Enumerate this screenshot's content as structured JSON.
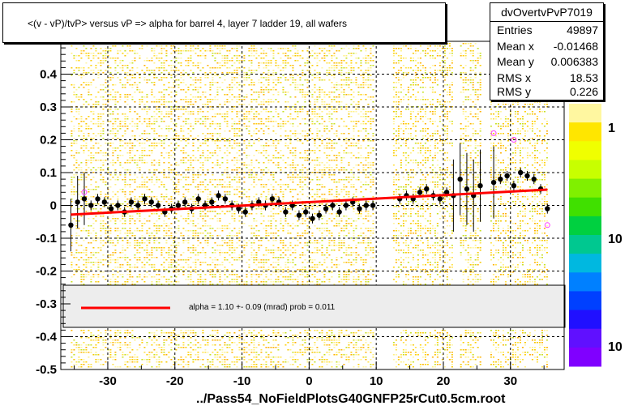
{
  "title": "<(v - vP)/tvP> versus   vP => alpha for barrel 4, layer 7 ladder 19, all wafers",
  "stats": {
    "name": "dvOvertvPvP7019",
    "rows": [
      {
        "label": "Entries",
        "value": "49897"
      },
      {
        "label": "Mean x",
        "value": "-0.01468"
      },
      {
        "label": "Mean y",
        "value": "0.006383"
      },
      {
        "label": "RMS x",
        "value": "18.53"
      },
      {
        "label": "RMS y",
        "value": "0.226"
      }
    ]
  },
  "legend": {
    "text": "alpha =    1.10 +-  0.09 (mrad) prob = 0.011",
    "line_color": "#ff0000"
  },
  "footer": "../Pass54_NoFieldPlotsG40GNFP25rCut0.5cm.root",
  "chart_data": {
    "type": "scatter",
    "xlim": [
      -37,
      38
    ],
    "ylim": [
      -0.5,
      0.5
    ],
    "x_ticks": [
      "-30",
      "-20",
      "-10",
      "0",
      "10",
      "20",
      "30"
    ],
    "y_ticks": [
      "-0.5",
      "-0.4",
      "-0.3",
      "-0.2",
      "-0.1",
      "0",
      "0.1",
      "0.2",
      "0.3",
      "0.4"
    ],
    "colorbar_labels": [
      "1",
      "10",
      "10"
    ],
    "fit_line": {
      "color": "#ff0000",
      "x": [
        -35.5,
        35.5
      ],
      "y": [
        -0.028,
        0.048
      ]
    },
    "dense_bands_x": [
      [
        -35.5,
        9.5
      ],
      [
        12.5,
        21.5
      ],
      [
        22.5,
        25.5
      ],
      [
        27,
        35.5
      ]
    ],
    "profile_points": {
      "x": [
        -35.5,
        -34.5,
        -33.5,
        -32.5,
        -31.5,
        -30.5,
        -29.5,
        -28.5,
        -27.5,
        -26.5,
        -25.5,
        -24.5,
        -23.5,
        -22.5,
        -21.5,
        -20.5,
        -19.5,
        -18.5,
        -17.5,
        -16.5,
        -15.5,
        -14.5,
        -13.5,
        -12.5,
        -11.5,
        -10.5,
        -9.5,
        -8.5,
        -7.5,
        -6.5,
        -5.5,
        -4.5,
        -3.5,
        -2.5,
        -1.5,
        -0.5,
        0.5,
        1.5,
        2.5,
        3.5,
        4.5,
        5.5,
        6.5,
        7.5,
        8.5,
        9.5,
        13.5,
        14.5,
        15.5,
        16.5,
        17.5,
        18.5,
        19.5,
        20.5,
        21.5,
        22.5,
        23.5,
        24.5,
        25.5,
        27.5,
        28.5,
        29.5,
        30.5,
        31.5,
        32.5,
        33.5,
        34.5,
        35.5
      ],
      "y": [
        -0.06,
        0.01,
        0.02,
        0.0,
        0.02,
        0.01,
        -0.01,
        0.0,
        -0.02,
        0.01,
        0.0,
        0.02,
        0.01,
        0.0,
        -0.02,
        -0.01,
        0.0,
        0.01,
        -0.01,
        0.02,
        0.0,
        0.01,
        0.03,
        0.02,
        0.0,
        -0.01,
        -0.02,
        0.0,
        0.01,
        0.0,
        0.02,
        0.01,
        -0.02,
        0.0,
        -0.03,
        -0.02,
        -0.04,
        -0.03,
        -0.01,
        0.0,
        -0.02,
        0.0,
        0.01,
        -0.01,
        0.0,
        0.0,
        0.02,
        0.03,
        0.02,
        0.04,
        0.05,
        0.03,
        0.02,
        0.04,
        0.03,
        0.08,
        0.05,
        0.03,
        0.06,
        0.07,
        0.08,
        0.09,
        0.06,
        0.1,
        0.09,
        0.08,
        0.05,
        -0.01
      ]
    },
    "outlier_points": {
      "x": [
        27.5,
        30.5,
        35.5,
        -33.5
      ],
      "y": [
        0.22,
        0.2,
        -0.06,
        0.04
      ]
    }
  }
}
